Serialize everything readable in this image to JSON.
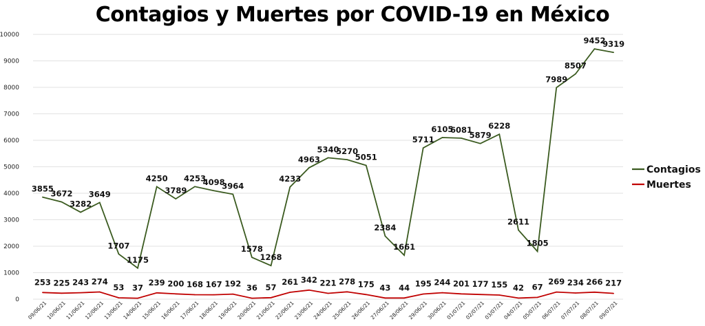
{
  "chart_data": {
    "type": "line",
    "title": "Contagios y Muertes por COVID-19 en México",
    "xlabel": "",
    "ylabel": "",
    "ylim": [
      0,
      10000
    ],
    "yticks": [
      0,
      1000,
      2000,
      3000,
      4000,
      5000,
      6000,
      7000,
      8000,
      9000,
      10000
    ],
    "grid": true,
    "legend_position": "right",
    "categories": [
      "09/06/21",
      "10/06/21",
      "11/06/21",
      "12/06/21",
      "13/06/21",
      "14/06/21",
      "15/06/21",
      "16/06/21",
      "17/06/21",
      "18/06/21",
      "19/06/21",
      "20/06/21",
      "21/06/21",
      "22/06/21",
      "23/06/21",
      "24/06/21",
      "25/06/21",
      "26/06/21",
      "27/06/21",
      "28/06/21",
      "29/06/21",
      "30/06/21",
      "01/07/21",
      "02/07/21",
      "03/07/21",
      "04/07/21",
      "05/07/21",
      "06/07/21",
      "07/07/21",
      "08/07/21",
      "09/07/21"
    ],
    "series": [
      {
        "name": "Contagios",
        "color": "#3a5a1f",
        "values": [
          3855,
          3672,
          3282,
          3649,
          1707,
          1175,
          4250,
          3789,
          4253,
          4098,
          3964,
          1578,
          1268,
          4233,
          4963,
          5340,
          5270,
          5051,
          2384,
          1661,
          5711,
          6105,
          6081,
          5879,
          6228,
          2611,
          1805,
          7989,
          8507,
          9452,
          9319
        ]
      },
      {
        "name": "Muertes",
        "color": "#c00000",
        "values": [
          253,
          225,
          243,
          274,
          53,
          37,
          239,
          200,
          168,
          167,
          192,
          36,
          57,
          261,
          342,
          221,
          278,
          175,
          43,
          44,
          195,
          244,
          201,
          177,
          155,
          42,
          67,
          269,
          234,
          266,
          217
        ]
      }
    ]
  }
}
